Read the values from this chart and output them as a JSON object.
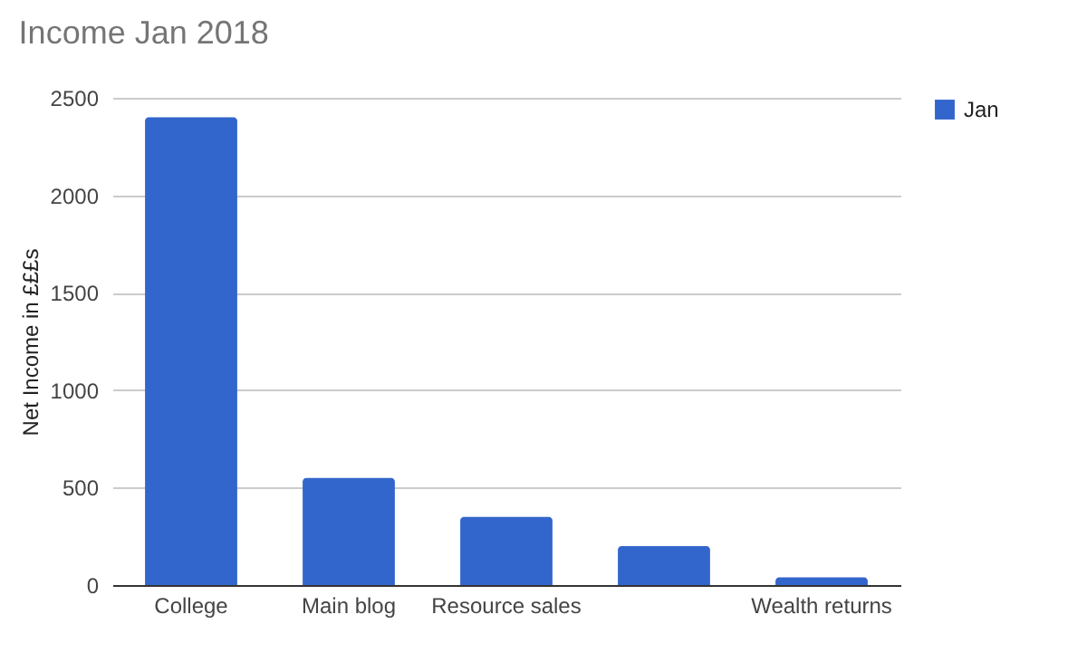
{
  "chart_data": {
    "type": "bar",
    "title": "Income Jan 2018",
    "ylabel": "Net Income in £££s",
    "categories": [
      "College",
      "Main blog",
      "Resource sales",
      null,
      "Wealth returns"
    ],
    "series": [
      {
        "name": "Jan",
        "color": "#3366cc",
        "values": [
          2400,
          550,
          350,
          200,
          40
        ]
      }
    ],
    "ylim": [
      0,
      2500
    ],
    "yticks": [
      0,
      500,
      1000,
      1500,
      2000,
      2500
    ],
    "grid": "y",
    "legend": "right"
  }
}
